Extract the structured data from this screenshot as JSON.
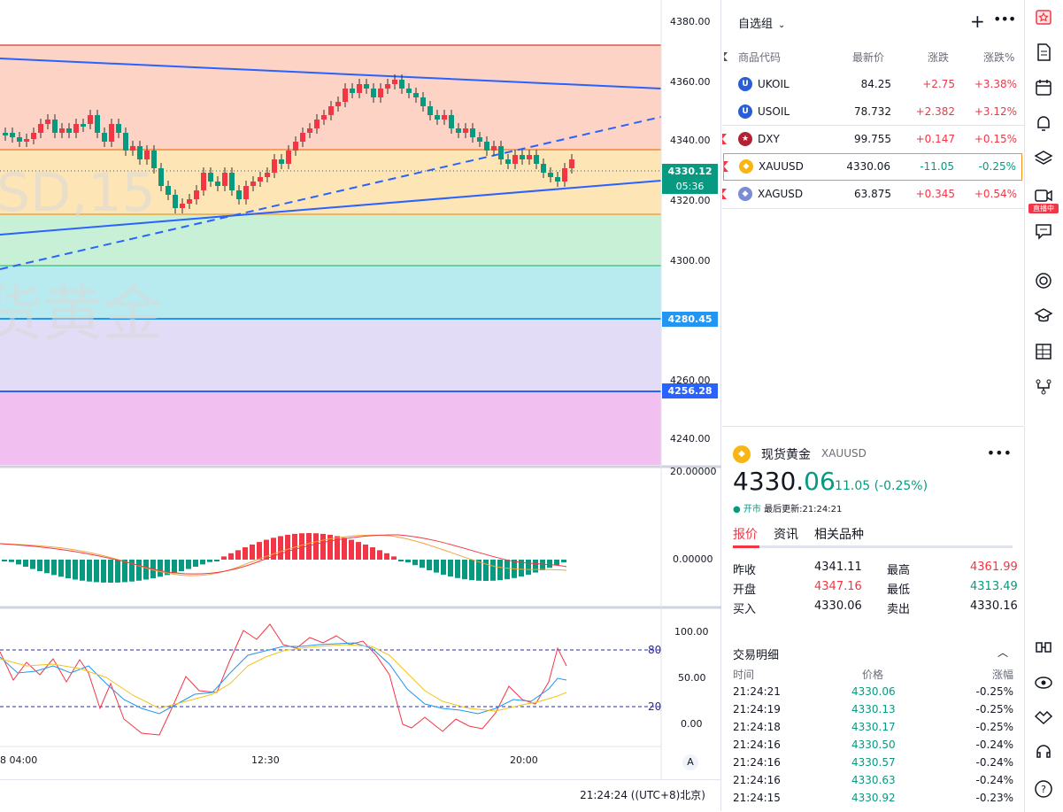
{
  "chart": {
    "y_ticks": [
      "4380.00",
      "4360.00",
      "4340.00",
      "4320.00",
      "4300.00",
      "4260.00",
      "4240.00"
    ],
    "current_price_tag": "4330.12",
    "countdown": "05:36",
    "level_tag_1": "4280.45",
    "level_tag_2": "4256.28",
    "watermark_top": "SD,15",
    "watermark_bottom": "货黄金",
    "macd_ticks": [
      "20.00000",
      "0.00000"
    ],
    "osc_ticks": [
      "100.00",
      "50.00",
      "0.00"
    ],
    "osc_levels": [
      "80",
      "20"
    ],
    "time_labels": [
      "8 04:00",
      "12:30",
      "20:00"
    ],
    "auto_label": "A",
    "clock": "21:24:24 ((UTC+8)北京)",
    "colors": {
      "up": "#f23645",
      "down": "#089981",
      "trend": "#2962ff"
    }
  },
  "watchlist": {
    "title": "自选组",
    "columns": [
      "商品代码",
      "最新价",
      "涨跌",
      "涨跌%"
    ],
    "rows": [
      {
        "symbol": "UKOIL",
        "last": "84.25",
        "change": "+2.75",
        "pct": "+3.38%",
        "icon": "oil-icon",
        "color": "#2a5ed8"
      },
      {
        "symbol": "USOIL",
        "last": "78.732",
        "change": "+2.382",
        "pct": "+3.12%",
        "icon": "oil-icon",
        "color": "#2a5ed8"
      },
      {
        "symbol": "DXY",
        "last": "99.755",
        "change": "+0.147",
        "pct": "+0.15%",
        "icon": "us-flag-icon",
        "color": "#b22234"
      },
      {
        "symbol": "XAUUSD",
        "last": "4330.06",
        "change": "-11.05",
        "pct": "-0.25%",
        "icon": "gold-icon",
        "color": "#f7b614"
      },
      {
        "symbol": "XAGUSD",
        "last": "63.875",
        "change": "+0.345",
        "pct": "+0.54%",
        "icon": "silver-icon",
        "color": "#7b8cd6"
      }
    ]
  },
  "detail": {
    "name": "现货黄金",
    "symbol": "XAUUSD",
    "price_int": "4330.",
    "price_dec": "06",
    "change": "-11.05 (-0.25%)",
    "status": "● 开市",
    "updated": "最后更新:21:24:21",
    "tabs": [
      "报价",
      "资讯",
      "相关品种"
    ],
    "stats": [
      {
        "label": "昨收",
        "value": "4341.11",
        "label2": "最高",
        "value2": "4361.99"
      },
      {
        "label": "开盘",
        "value": "4347.16",
        "label2": "最低",
        "value2": "4313.49"
      },
      {
        "label": "买入",
        "value": "4330.06",
        "label2": "卖出",
        "value2": "4330.16"
      }
    ],
    "trades_title": "交易明细",
    "trade_columns": [
      "时间",
      "价格",
      "涨幅"
    ],
    "trades": [
      {
        "time": "21:24:21",
        "price": "4330.06",
        "pct": "-0.25%"
      },
      {
        "time": "21:24:19",
        "price": "4330.13",
        "pct": "-0.25%"
      },
      {
        "time": "21:24:18",
        "price": "4330.17",
        "pct": "-0.25%"
      },
      {
        "time": "21:24:16",
        "price": "4330.50",
        "pct": "-0.24%"
      },
      {
        "time": "21:24:16",
        "price": "4330.57",
        "pct": "-0.24%"
      },
      {
        "time": "21:24:16",
        "price": "4330.63",
        "pct": "-0.24%"
      },
      {
        "time": "21:24:15",
        "price": "4330.92",
        "pct": "-0.23%"
      }
    ]
  },
  "rail": {
    "live_badge": "直播中"
  }
}
